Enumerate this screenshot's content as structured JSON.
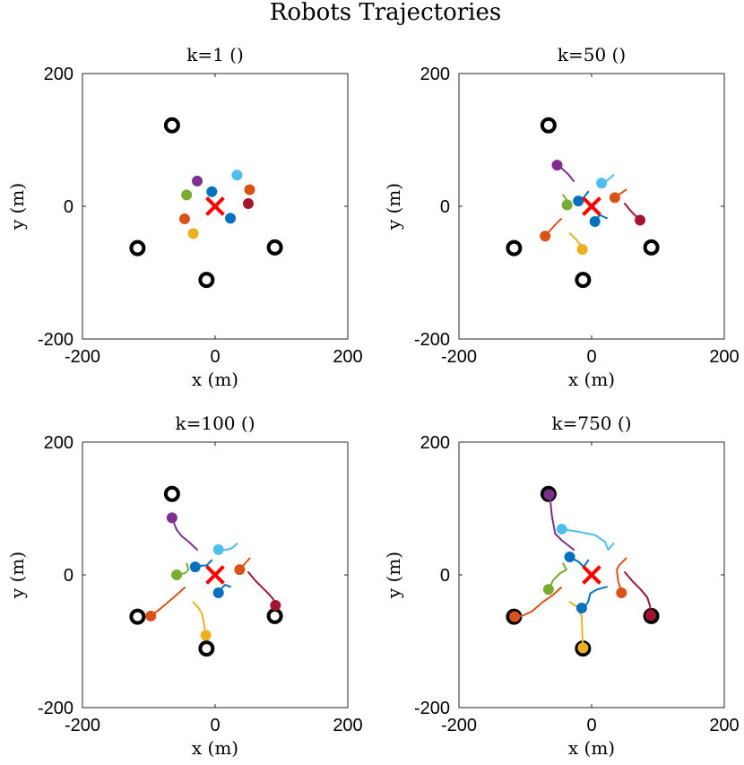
{
  "figure": {
    "title": "Robots Trajectories"
  },
  "chart_data": [
    {
      "type": "scatter",
      "title": "k=1 ()",
      "xlabel": "x (m)",
      "ylabel": "y (m)",
      "xlim": [
        -200,
        200
      ],
      "ylim": [
        -200,
        200
      ],
      "xticks": [
        "-200",
        "0",
        "200"
      ],
      "yticks": [
        "-200",
        "0",
        "200"
      ],
      "target": [
        0,
        0
      ],
      "goals": [
        [
          -65,
          122
        ],
        [
          -117,
          -63
        ],
        [
          90,
          -62
        ],
        [
          -13,
          -111
        ]
      ],
      "robots": [
        {
          "color": "#7E2F8E",
          "trail": [
            [
              -27,
              38
            ]
          ]
        },
        {
          "color": "#4DBEEE",
          "trail": [
            [
              33,
              47
            ]
          ]
        },
        {
          "color": "#D95319",
          "trail": [
            [
              52,
              25
            ]
          ]
        },
        {
          "color": "#A2142F",
          "trail": [
            [
              50,
              4
            ]
          ]
        },
        {
          "color": "#0072BD",
          "trail": [
            [
              -5,
              22
            ]
          ]
        },
        {
          "color": "#77AC30",
          "trail": [
            [
              -43,
              17
            ]
          ]
        },
        {
          "color": "#0072BD",
          "trail": [
            [
              23,
              -18
            ]
          ]
        },
        {
          "color": "#D95319",
          "trail": [
            [
              -46,
              -19
            ]
          ]
        },
        {
          "color": "#EDB120",
          "trail": [
            [
              -33,
              -41
            ]
          ]
        }
      ]
    },
    {
      "type": "scatter",
      "title": "k=50 ()",
      "xlabel": "x (m)",
      "ylabel": "y (m)",
      "xlim": [
        -200,
        200
      ],
      "ylim": [
        -200,
        200
      ],
      "xticks": [
        "-200",
        "0",
        "200"
      ],
      "yticks": [
        "-200",
        "0",
        "200"
      ],
      "target": [
        0,
        0
      ],
      "goals": [
        [
          -65,
          122
        ],
        [
          -117,
          -63
        ],
        [
          90,
          -62
        ],
        [
          -13,
          -111
        ]
      ],
      "robots": [
        {
          "color": "#7E2F8E",
          "trail": [
            [
              -27,
              38
            ],
            [
              -35,
              48
            ],
            [
              -45,
              57
            ],
            [
              -52,
              62
            ]
          ]
        },
        {
          "color": "#4DBEEE",
          "trail": [
            [
              33,
              47
            ],
            [
              25,
              40
            ],
            [
              18,
              36
            ],
            [
              15,
              35
            ]
          ]
        },
        {
          "color": "#D95319",
          "trail": [
            [
              52,
              25
            ],
            [
              45,
              20
            ],
            [
              38,
              16
            ],
            [
              35,
              13
            ]
          ]
        },
        {
          "color": "#A2142F",
          "trail": [
            [
              50,
              4
            ],
            [
              58,
              -6
            ],
            [
              66,
              -14
            ],
            [
              73,
              -21
            ]
          ]
        },
        {
          "color": "#0072BD",
          "trail": [
            [
              -5,
              22
            ],
            [
              -13,
              12
            ],
            [
              -17,
              9
            ],
            [
              -20,
              8
            ]
          ]
        },
        {
          "color": "#77AC30",
          "trail": [
            [
              -43,
              17
            ],
            [
              -38,
              10
            ],
            [
              -35,
              5
            ],
            [
              -37,
              2
            ]
          ]
        },
        {
          "color": "#0072BD",
          "trail": [
            [
              23,
              -18
            ],
            [
              12,
              -13
            ],
            [
              8,
              -20
            ],
            [
              5,
              -23
            ]
          ]
        },
        {
          "color": "#D95319",
          "trail": [
            [
              -46,
              -19
            ],
            [
              -55,
              -28
            ],
            [
              -62,
              -36
            ],
            [
              -70,
              -45
            ]
          ]
        },
        {
          "color": "#EDB120",
          "trail": [
            [
              -33,
              -41
            ],
            [
              -25,
              -48
            ],
            [
              -18,
              -57
            ],
            [
              -14,
              -65
            ]
          ]
        }
      ]
    },
    {
      "type": "scatter",
      "title": "k=100 ()",
      "xlabel": "x (m)",
      "ylabel": "y (m)",
      "xlim": [
        -200,
        200
      ],
      "ylim": [
        -200,
        200
      ],
      "xticks": [
        "-200",
        "0",
        "200"
      ],
      "yticks": [
        "-200",
        "0",
        "200"
      ],
      "target": [
        0,
        0
      ],
      "goals": [
        [
          -65,
          122
        ],
        [
          -117,
          -63
        ],
        [
          90,
          -62
        ],
        [
          -13,
          -111
        ]
      ],
      "robots": [
        {
          "color": "#7E2F8E",
          "trail": [
            [
              -27,
              38
            ],
            [
              -40,
              50
            ],
            [
              -50,
              58
            ],
            [
              -58,
              68
            ],
            [
              -62,
              78
            ],
            [
              -65,
              86
            ]
          ]
        },
        {
          "color": "#4DBEEE",
          "trail": [
            [
              33,
              47
            ],
            [
              25,
              40
            ],
            [
              17,
              38
            ],
            [
              10,
              38
            ],
            [
              5,
              38
            ]
          ]
        },
        {
          "color": "#D95319",
          "trail": [
            [
              52,
              25
            ],
            [
              45,
              17
            ],
            [
              40,
              11
            ],
            [
              37,
              8
            ]
          ]
        },
        {
          "color": "#A2142F",
          "trail": [
            [
              50,
              4
            ],
            [
              60,
              -8
            ],
            [
              70,
              -18
            ],
            [
              80,
              -28
            ],
            [
              88,
              -37
            ],
            [
              91,
              -46
            ]
          ]
        },
        {
          "color": "#0072BD",
          "trail": [
            [
              -5,
              22
            ],
            [
              -13,
              14
            ],
            [
              -20,
              14
            ],
            [
              -25,
              12
            ],
            [
              -30,
              12
            ]
          ]
        },
        {
          "color": "#77AC30",
          "trail": [
            [
              -43,
              17
            ],
            [
              -40,
              8
            ],
            [
              -45,
              3
            ],
            [
              -52,
              1
            ],
            [
              -58,
              0
            ]
          ]
        },
        {
          "color": "#0072BD",
          "trail": [
            [
              23,
              -18
            ],
            [
              15,
              -15
            ],
            [
              10,
              -20
            ],
            [
              8,
              -27
            ],
            [
              5,
              -27
            ]
          ]
        },
        {
          "color": "#D95319",
          "trail": [
            [
              -46,
              -19
            ],
            [
              -58,
              -30
            ],
            [
              -72,
              -42
            ],
            [
              -85,
              -53
            ],
            [
              -97,
              -62
            ]
          ]
        },
        {
          "color": "#EDB120",
          "trail": [
            [
              -33,
              -41
            ],
            [
              -25,
              -50
            ],
            [
              -20,
              -58
            ],
            [
              -17,
              -72
            ],
            [
              -14,
              -91
            ]
          ]
        }
      ]
    },
    {
      "type": "scatter",
      "title": "k=750 ()",
      "xlabel": "x (m)",
      "ylabel": "y (m)",
      "xlim": [
        -200,
        200
      ],
      "ylim": [
        -200,
        200
      ],
      "xticks": [
        "-200",
        "0",
        "200"
      ],
      "yticks": [
        "-200",
        "0",
        "200"
      ],
      "target": [
        0,
        0
      ],
      "goals": [
        [
          -65,
          122
        ],
        [
          -117,
          -63
        ],
        [
          90,
          -62
        ],
        [
          -13,
          -111
        ]
      ],
      "robots": [
        {
          "color": "#7E2F8E",
          "trail": [
            [
              -27,
              38
            ],
            [
              -45,
              52
            ],
            [
              -55,
              62
            ],
            [
              -60,
              90
            ],
            [
              -62,
              110
            ],
            [
              -64,
              121
            ]
          ]
        },
        {
          "color": "#4DBEEE",
          "trail": [
            [
              33,
              47
            ],
            [
              25,
              38
            ],
            [
              20,
              50
            ],
            [
              5,
              60
            ],
            [
              -20,
              65
            ],
            [
              -38,
              68
            ],
            [
              -45,
              69
            ]
          ]
        },
        {
          "color": "#D95319",
          "trail": [
            [
              52,
              25
            ],
            [
              42,
              15
            ],
            [
              38,
              8
            ],
            [
              40,
              -10
            ],
            [
              44,
              -22
            ],
            [
              45,
              -27
            ]
          ]
        },
        {
          "color": "#A2142F",
          "trail": [
            [
              50,
              4
            ],
            [
              62,
              -10
            ],
            [
              74,
              -22
            ],
            [
              84,
              -34
            ],
            [
              88,
              -47
            ],
            [
              89,
              -61
            ]
          ]
        },
        {
          "color": "#0072BD",
          "trail": [
            [
              -5,
              22
            ],
            [
              -12,
              12
            ],
            [
              -15,
              15
            ],
            [
              -20,
              20
            ],
            [
              -28,
              24
            ],
            [
              -33,
              27
            ]
          ]
        },
        {
          "color": "#77AC30",
          "trail": [
            [
              -43,
              17
            ],
            [
              -38,
              8
            ],
            [
              -48,
              2
            ],
            [
              -58,
              -8
            ],
            [
              -63,
              -18
            ],
            [
              -65,
              -22
            ]
          ]
        },
        {
          "color": "#0072BD",
          "trail": [
            [
              23,
              -18
            ],
            [
              8,
              -22
            ],
            [
              -2,
              -28
            ],
            [
              -5,
              -40
            ],
            [
              -10,
              -48
            ],
            [
              -15,
              -50
            ]
          ]
        },
        {
          "color": "#D95319",
          "trail": [
            [
              -46,
              -19
            ],
            [
              -58,
              -30
            ],
            [
              -75,
              -42
            ],
            [
              -90,
              -55
            ],
            [
              -105,
              -62
            ],
            [
              -116,
              -63
            ]
          ]
        },
        {
          "color": "#EDB120",
          "trail": [
            [
              -33,
              -41
            ],
            [
              -22,
              -48
            ],
            [
              -15,
              -62
            ],
            [
              -14,
              -88
            ],
            [
              -13,
              -110
            ]
          ]
        }
      ]
    }
  ]
}
